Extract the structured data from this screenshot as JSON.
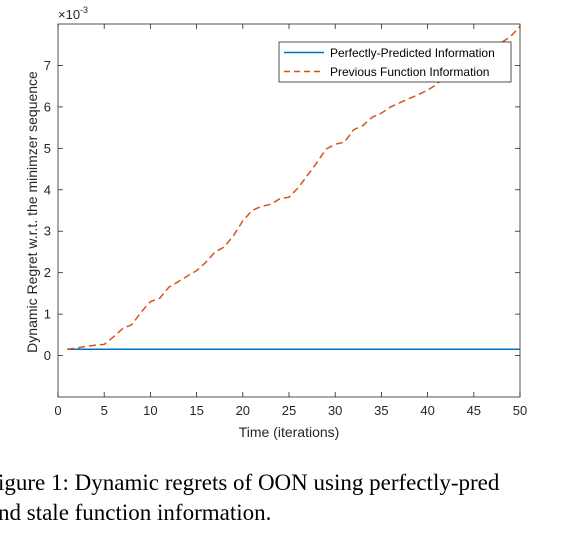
{
  "chart_data": {
    "type": "line",
    "xlabel": "Time (iterations)",
    "ylabel": "Dynamic Regret w.r.t. the minimzer sequence",
    "scale_label": "×10",
    "scale_exponent": "-3",
    "xlim": [
      0,
      50
    ],
    "ylim": [
      -1,
      8
    ],
    "xticks": [
      0,
      5,
      10,
      15,
      20,
      25,
      30,
      35,
      40,
      45,
      50
    ],
    "yticks": [
      0,
      1,
      2,
      3,
      4,
      5,
      6,
      7
    ],
    "grid": false,
    "legend_position": "top-right",
    "series": [
      {
        "name": "Perfectly-Predicted Information",
        "color": "#0072bd",
        "style": "solid",
        "x": [
          1,
          50
        ],
        "y": [
          0.15,
          0.15
        ]
      },
      {
        "name": "Previous Function Information",
        "color": "#d95319",
        "style": "dashed",
        "x": [
          1,
          2,
          3,
          4,
          5,
          6,
          7,
          8,
          9,
          10,
          11,
          12,
          13,
          14,
          15,
          16,
          17,
          18,
          19,
          20,
          21,
          22,
          23,
          24,
          25,
          26,
          27,
          28,
          29,
          30,
          31,
          32,
          33,
          34,
          35,
          36,
          37,
          38,
          39,
          40,
          41,
          42,
          43,
          44,
          45,
          46,
          47,
          48,
          49,
          50
        ],
        "y": [
          0.15,
          0.18,
          0.22,
          0.25,
          0.27,
          0.45,
          0.65,
          0.75,
          1.05,
          1.3,
          1.38,
          1.65,
          1.78,
          1.92,
          2.05,
          2.25,
          2.5,
          2.62,
          2.9,
          3.25,
          3.5,
          3.6,
          3.65,
          3.78,
          3.82,
          4.05,
          4.35,
          4.65,
          4.98,
          5.1,
          5.15,
          5.45,
          5.55,
          5.75,
          5.85,
          6.0,
          6.1,
          6.2,
          6.3,
          6.4,
          6.55,
          6.75,
          6.95,
          7.05,
          7.15,
          7.3,
          7.45,
          7.55,
          7.7,
          7.95
        ]
      }
    ]
  },
  "caption": {
    "line1": "igure 1: Dynamic regrets of OON using perfectly-pred",
    "line2": "nd stale function information."
  }
}
